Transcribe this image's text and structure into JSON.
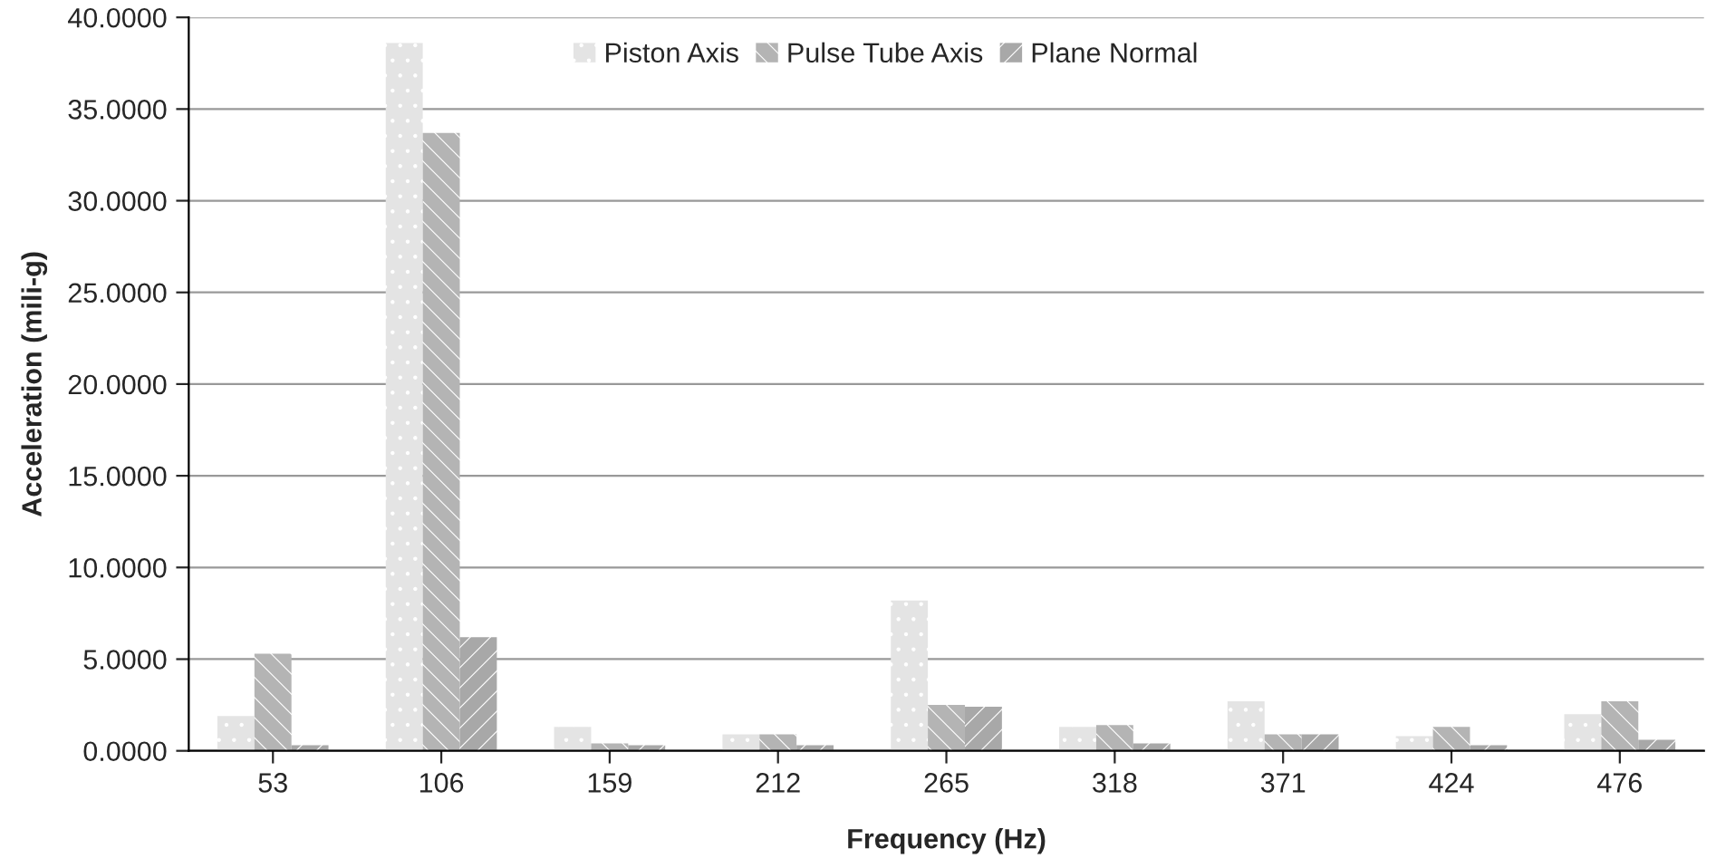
{
  "chart_data": {
    "type": "bar",
    "xlabel": "Frequency (Hz)",
    "ylabel": "Acceleration (mili-g)",
    "categories": [
      "53",
      "106",
      "159",
      "212",
      "265",
      "318",
      "371",
      "424",
      "476"
    ],
    "series": [
      {
        "name": "Piston Axis",
        "color": "#e4e4e4",
        "values": [
          1.9,
          38.6,
          1.3,
          0.9,
          8.2,
          1.3,
          2.7,
          0.8,
          2.0
        ]
      },
      {
        "name": "Pulse Tube Axis",
        "color": "#b4b4b4",
        "values": [
          5.3,
          33.7,
          0.4,
          0.9,
          2.5,
          1.4,
          0.9,
          1.3,
          2.7
        ]
      },
      {
        "name": "Plane Normal",
        "color": "#a8a8a8",
        "values": [
          0.3,
          6.2,
          0.3,
          0.3,
          2.4,
          0.4,
          0.9,
          0.3,
          0.6
        ]
      }
    ],
    "ylim": [
      0,
      40
    ],
    "yticks": [
      {
        "value": 0,
        "label": "0.0000"
      },
      {
        "value": 5,
        "label": "5.0000"
      },
      {
        "value": 10,
        "label": "10.0000"
      },
      {
        "value": 15,
        "label": "15.0000"
      },
      {
        "value": 20,
        "label": "20.0000"
      },
      {
        "value": 25,
        "label": "25.0000"
      },
      {
        "value": 30,
        "label": "30.0000"
      },
      {
        "value": 35,
        "label": "35.0000"
      },
      {
        "value": 40,
        "label": "40.0000"
      }
    ],
    "grid": "y",
    "legend": "top"
  }
}
